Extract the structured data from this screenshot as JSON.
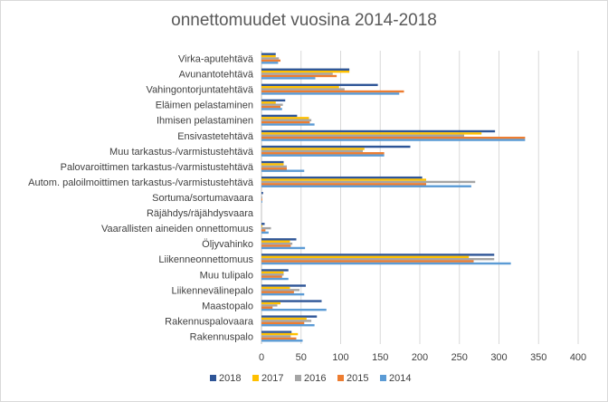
{
  "chart_data": {
    "type": "bar",
    "orientation": "horizontal",
    "title": "onnettomuudet vuosina 2014-2018",
    "xlim": [
      0,
      400
    ],
    "xticks": [
      0,
      50,
      100,
      150,
      200,
      250,
      300,
      350,
      400
    ],
    "grid": true,
    "legend_position": "bottom",
    "categories": [
      "Virka-aputehtävä",
      "Avunantotehtävä",
      "Vahingontorjuntatehtävä",
      "Eläimen pelastaminen",
      "Ihmisen pelastaminen",
      "Ensivastetehtävä",
      "Muu tarkastus-/varmistustehtävä",
      "Palovaroittimen tarkastus-/varmistustehtävä",
      "Autom. paloilmoittimen tarkastus-/varmistustehtävä",
      "Sortuma/sortumavaara",
      "Räjähdys/räjähdysvaara",
      "Vaarallisten aineiden onnettomuus",
      "Öljyvahinko",
      "Liikenneonnettomuus",
      "Muu tulipalo",
      "Liikennevälinepalo",
      "Maastopalo",
      "Rakennuspalovaara",
      "Rakennuspalo"
    ],
    "series": [
      {
        "name": "2018",
        "color": "#2e5597",
        "values": [
          18,
          111,
          147,
          30,
          45,
          295,
          188,
          28,
          203,
          2,
          0,
          4,
          44,
          294,
          34,
          56,
          76,
          70,
          38
        ]
      },
      {
        "name": "2017",
        "color": "#ffc000",
        "values": [
          18,
          111,
          98,
          18,
          60,
          278,
          130,
          28,
          208,
          0,
          0,
          1,
          36,
          262,
          28,
          36,
          24,
          57,
          46
        ]
      },
      {
        "name": "2016",
        "color": "#a5a5a5",
        "values": [
          22,
          90,
          105,
          27,
          63,
          256,
          128,
          32,
          270,
          1,
          0,
          12,
          39,
          294,
          28,
          48,
          20,
          63,
          37
        ]
      },
      {
        "name": "2015",
        "color": "#ed7d31",
        "values": [
          24,
          95,
          180,
          24,
          61,
          333,
          155,
          32,
          208,
          1,
          0,
          5,
          37,
          268,
          26,
          41,
          14,
          54,
          44
        ]
      },
      {
        "name": "2014",
        "color": "#5b9bd5",
        "values": [
          21,
          68,
          174,
          26,
          67,
          333,
          155,
          54,
          265,
          1,
          0,
          9,
          55,
          315,
          34,
          54,
          82,
          67,
          52
        ]
      }
    ]
  }
}
